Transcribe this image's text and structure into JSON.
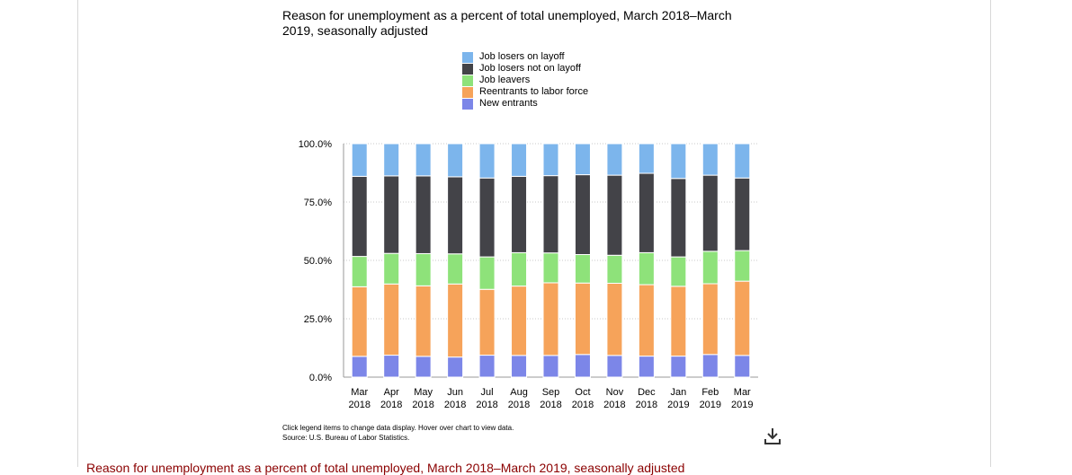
{
  "chart_data": {
    "type": "bar",
    "stacked": true,
    "title": "Reason for unemployment as a percent of total unemployed, March 2018–March 2019, seasonally adjusted",
    "categories": [
      [
        "Mar",
        "2018"
      ],
      [
        "Apr",
        "2018"
      ],
      [
        "May",
        "2018"
      ],
      [
        "Jun",
        "2018"
      ],
      [
        "Jul",
        "2018"
      ],
      [
        "Aug",
        "2018"
      ],
      [
        "Sep",
        "2018"
      ],
      [
        "Oct",
        "2018"
      ],
      [
        "Nov",
        "2018"
      ],
      [
        "Dec",
        "2018"
      ],
      [
        "Jan",
        "2019"
      ],
      [
        "Feb",
        "2019"
      ],
      [
        "Mar",
        "2019"
      ]
    ],
    "yticks": [
      "0.0%",
      "25.0%",
      "50.0%",
      "75.0%",
      "100.0%"
    ],
    "ylim": [
      0,
      100
    ],
    "grid": true,
    "legend_position": "top",
    "series": [
      {
        "name": "New entrants",
        "color": "#7c86e8",
        "values": [
          8.9,
          9.4,
          8.9,
          8.6,
          9.4,
          9.3,
          9.3,
          9.7,
          9.3,
          9.0,
          9.0,
          9.7,
          9.3
        ]
      },
      {
        "name": "Reentrants to labor force",
        "color": "#f6a35a",
        "values": [
          29.8,
          30.5,
          30.2,
          31.3,
          28.2,
          29.7,
          31.1,
          30.6,
          30.9,
          30.6,
          29.9,
          30.3,
          31.8
        ]
      },
      {
        "name": "Job leavers",
        "color": "#8ee27a",
        "values": [
          13.0,
          13.1,
          13.8,
          12.9,
          13.9,
          14.3,
          12.8,
          12.2,
          12.0,
          13.7,
          12.6,
          13.9,
          13.1
        ]
      },
      {
        "name": "Job losers not on layoff",
        "color": "#434348",
        "values": [
          34.3,
          33.2,
          33.3,
          33.0,
          33.8,
          32.7,
          33.1,
          34.2,
          34.3,
          34.0,
          33.6,
          32.6,
          31.1
        ]
      },
      {
        "name": "Job losers on layoff",
        "color": "#7cb5ec",
        "values": [
          14.0,
          13.8,
          13.8,
          14.2,
          14.7,
          14.0,
          13.7,
          13.3,
          13.5,
          12.7,
          14.9,
          13.5,
          14.7
        ]
      }
    ]
  },
  "legend": [
    {
      "label": "Job losers on layoff",
      "color": "#7cb5ec"
    },
    {
      "label": "Job losers not on layoff",
      "color": "#434348"
    },
    {
      "label": "Job leavers",
      "color": "#8ee27a"
    },
    {
      "label": "Reentrants to labor force",
      "color": "#f6a35a"
    },
    {
      "label": "New entrants",
      "color": "#7c86e8"
    }
  ],
  "note": {
    "line1": "Click legend items to change data display. Hover over chart to view data.",
    "line2": "Source: U.S. Bureau of Labor Statistics."
  },
  "download_icon": "download-icon",
  "bottom_heading": "Reason for unemployment as a percent of total unemployed, March 2018–March 2019, seasonally adjusted"
}
